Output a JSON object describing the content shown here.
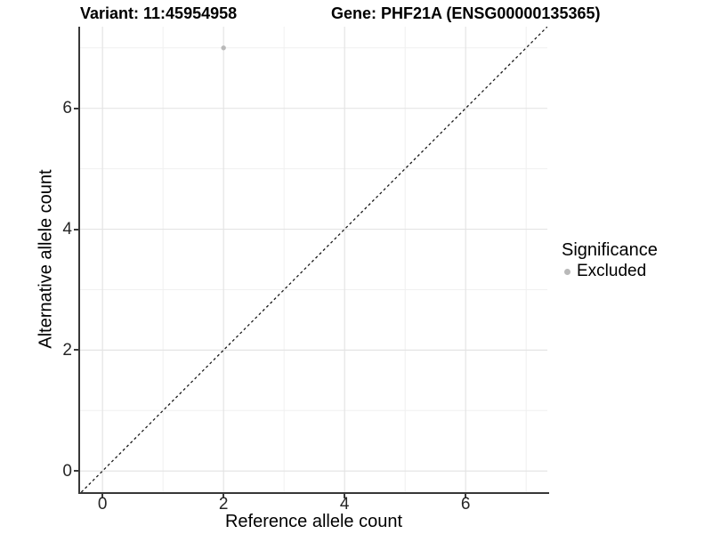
{
  "chart_data": {
    "type": "scatter",
    "title_left": "Variant: 11:45954958",
    "title_right": "Gene: PHF21A (ENSG00000135365)",
    "xlabel": "Reference allele count",
    "ylabel": "Alternative allele count",
    "xlim": [
      -0.37,
      7.35
    ],
    "ylim": [
      -0.35,
      7.35
    ],
    "x_ticks": [
      0,
      2,
      4,
      6
    ],
    "y_ticks": [
      0,
      2,
      4,
      6
    ],
    "x_minor_ticks": [
      1,
      3,
      5,
      7
    ],
    "y_minor_ticks": [
      1,
      3,
      5,
      7
    ],
    "grid": "major and minor gridlines, white panel background",
    "points": [
      {
        "x": 2,
        "y": 7,
        "series": "Excluded"
      }
    ],
    "reference_line": {
      "slope": 1,
      "intercept": 0,
      "style": "dashed"
    },
    "legend": {
      "title": "Significance",
      "position": "right",
      "items": [
        {
          "label": "Excluded",
          "color": "#b9b9b9"
        }
      ]
    },
    "colors": {
      "background": "#ffffff",
      "grid_major": "#e4e4e4",
      "grid_minor": "#f0f0f0",
      "axis_line": "#383838",
      "tick_mark": "#383838",
      "tick_label": "#262626",
      "reference_line": "#1a1a1a",
      "point_default": "#b9b9b9",
      "text": "#000000"
    }
  }
}
